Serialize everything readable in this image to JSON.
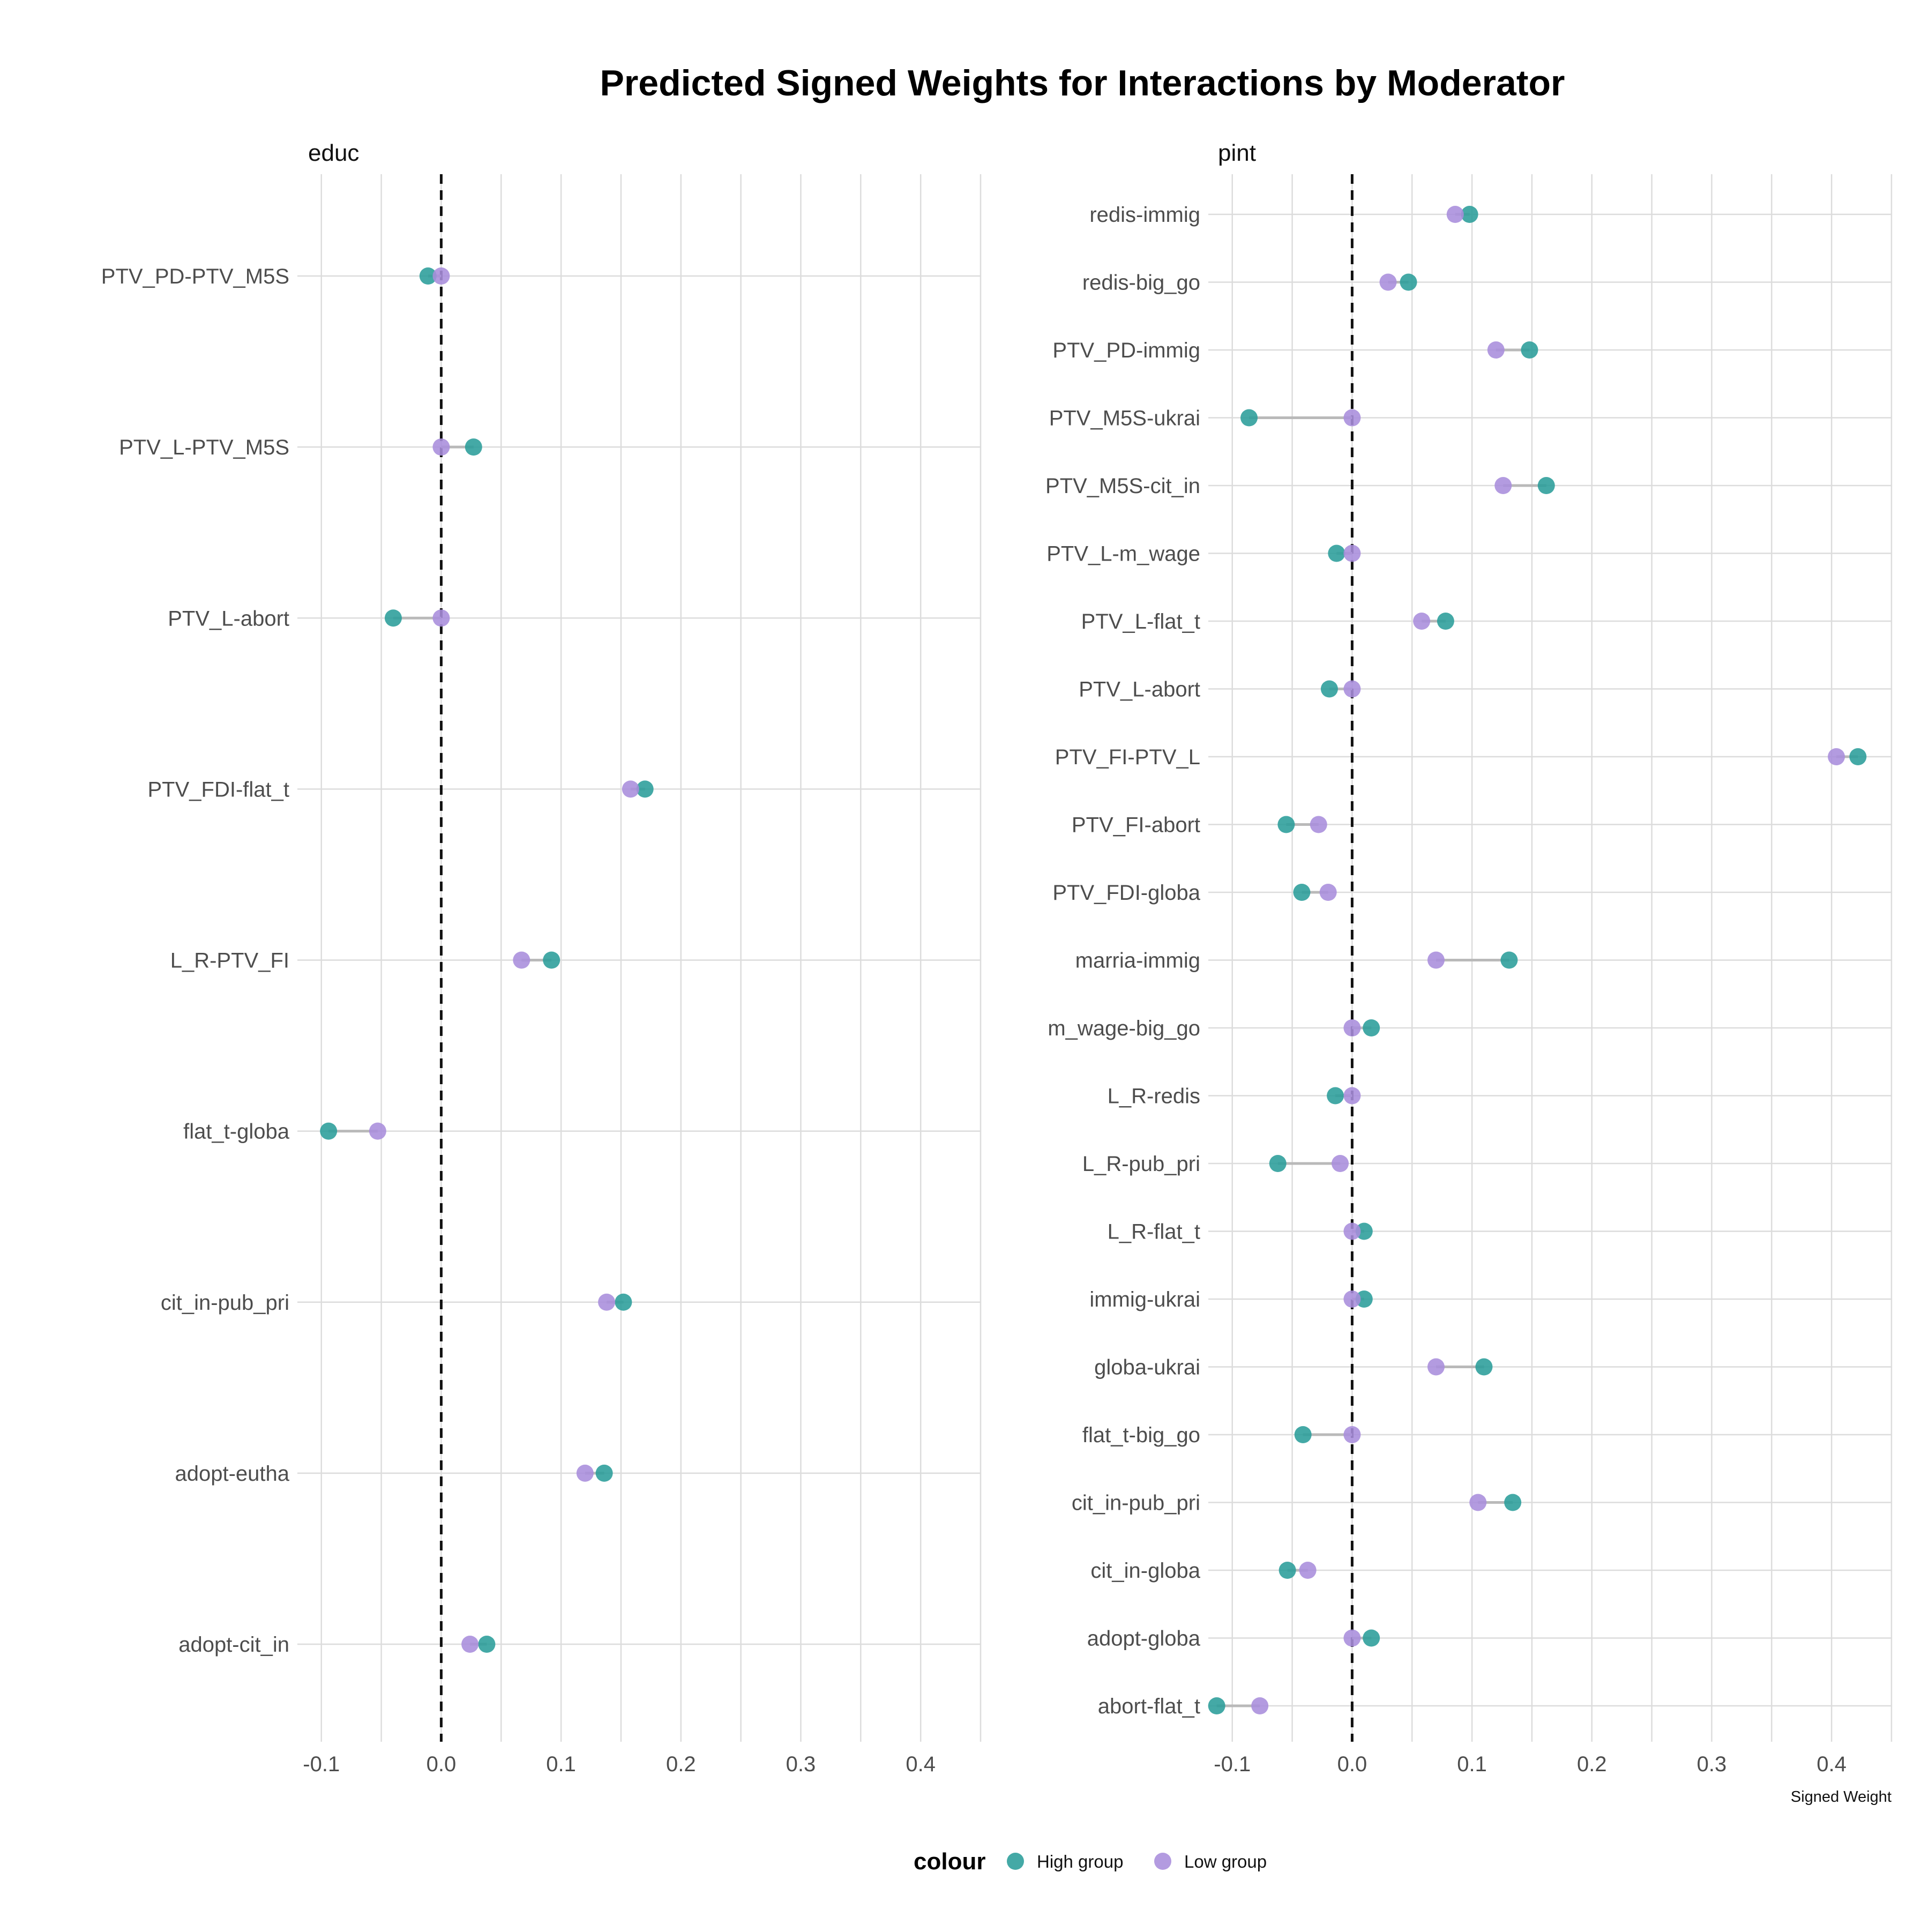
{
  "title": "Predicted Signed Weights for Interactions by Moderator",
  "colors": {
    "high": "#2a9d9a",
    "low": "#a88ddc",
    "segment": "#b9b9b9",
    "grid": "#dcdcdc",
    "refline": "#111111"
  },
  "legend": {
    "title": "colour",
    "items": [
      {
        "label": "High group",
        "color": "#2a9d9a"
      },
      {
        "label": "Low group",
        "color": "#a88ddc"
      }
    ]
  },
  "chart_data": [
    {
      "type": "scatter",
      "panel": "educ",
      "xlabel": "",
      "xlim": [
        -0.12,
        0.45
      ],
      "xticks": [
        -0.1,
        0.0,
        0.1,
        0.2,
        0.3,
        0.4
      ],
      "xtick_labels": [
        "-0.1",
        "0.0",
        "0.1",
        "0.2",
        "0.3",
        "0.4"
      ],
      "reference_line": 0,
      "grid": true,
      "categories": [
        "PTV_PD-PTV_M5S",
        "PTV_L-PTV_M5S",
        "PTV_L-abort",
        "PTV_FDI-flat_t",
        "L_R-PTV_FI",
        "flat_t-globa",
        "cit_in-pub_pri",
        "adopt-eutha",
        "adopt-cit_in"
      ],
      "series": [
        {
          "name": "High group",
          "values": [
            -0.011,
            0.027,
            -0.04,
            0.17,
            0.092,
            -0.094,
            0.152,
            0.136,
            0.038
          ]
        },
        {
          "name": "Low group",
          "values": [
            0.0,
            0.0,
            0.0,
            0.158,
            0.067,
            -0.053,
            0.138,
            0.12,
            0.024
          ]
        }
      ]
    },
    {
      "type": "scatter",
      "panel": "pint",
      "xlabel": "Signed Weight",
      "xlim": [
        -0.12,
        0.45
      ],
      "xticks": [
        -0.1,
        0.0,
        0.1,
        0.2,
        0.3,
        0.4
      ],
      "xtick_labels": [
        "-0.1",
        "0.0",
        "0.1",
        "0.2",
        "0.3",
        "0.4"
      ],
      "reference_line": 0,
      "grid": true,
      "categories": [
        "redis-immig",
        "redis-big_go",
        "PTV_PD-immig",
        "PTV_M5S-ukrai",
        "PTV_M5S-cit_in",
        "PTV_L-m_wage",
        "PTV_L-flat_t",
        "PTV_L-abort",
        "PTV_FI-PTV_L",
        "PTV_FI-abort",
        "PTV_FDI-globa",
        "marria-immig",
        "m_wage-big_go",
        "L_R-redis",
        "L_R-pub_pri",
        "L_R-flat_t",
        "immig-ukrai",
        "globa-ukrai",
        "flat_t-big_go",
        "cit_in-pub_pri",
        "cit_in-globa",
        "adopt-globa",
        "abort-flat_t"
      ],
      "series": [
        {
          "name": "High group",
          "values": [
            0.098,
            0.047,
            0.148,
            -0.086,
            0.162,
            -0.013,
            0.078,
            -0.019,
            0.422,
            -0.055,
            -0.042,
            0.131,
            0.016,
            -0.014,
            -0.062,
            0.01,
            0.01,
            0.11,
            -0.041,
            0.134,
            -0.054,
            0.016,
            -0.113
          ]
        },
        {
          "name": "Low group",
          "values": [
            0.086,
            0.03,
            0.12,
            0.0,
            0.126,
            0.0,
            0.058,
            0.0,
            0.404,
            -0.028,
            -0.02,
            0.07,
            0.0,
            0.0,
            -0.01,
            0.0,
            0.0,
            0.07,
            0.0,
            0.105,
            -0.037,
            0.0,
            -0.077
          ]
        }
      ]
    }
  ]
}
